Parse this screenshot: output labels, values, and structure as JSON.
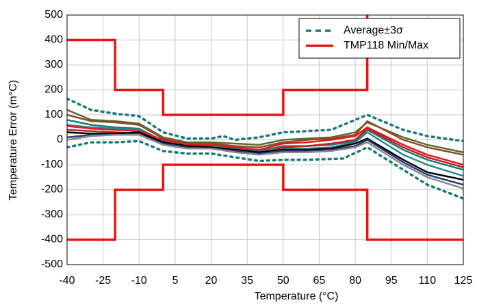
{
  "chart_data": {
    "type": "line",
    "xlabel": "Temperature (°C)",
    "ylabel": "Temperature Error (m°C)",
    "xlim": [
      -40,
      125
    ],
    "xticks": [
      -40,
      -25,
      -10,
      5,
      20,
      35,
      50,
      65,
      80,
      95,
      110,
      125
    ],
    "ylim": [
      -500,
      500
    ],
    "yticks": [
      -500,
      -400,
      -300,
      -200,
      -100,
      0,
      100,
      200,
      300,
      400,
      500
    ],
    "grid": true,
    "legend": "upper right",
    "series": [
      {
        "color": "#5a6b2a",
        "x": [
          -40,
          -30,
          -20,
          -10,
          0,
          10,
          20,
          30,
          40,
          50,
          60,
          70,
          80,
          85,
          100,
          110,
          125
        ],
        "values": [
          120,
          80,
          75,
          65,
          10,
          -10,
          -10,
          -15,
          -20,
          0,
          5,
          10,
          30,
          70,
          10,
          -20,
          -50
        ]
      },
      {
        "color": "#8b4a2b",
        "x": [
          -40,
          -30,
          -20,
          -10,
          0,
          10,
          20,
          30,
          40,
          50,
          60,
          70,
          80,
          85,
          100,
          110,
          125
        ],
        "values": [
          100,
          75,
          70,
          60,
          5,
          -15,
          -15,
          -25,
          -30,
          -10,
          0,
          5,
          20,
          75,
          0,
          -30,
          -60
        ]
      },
      {
        "color": "#1a7a7a",
        "x": [
          -40,
          -30,
          -20,
          -10,
          0,
          10,
          20,
          30,
          40,
          50,
          60,
          70,
          80,
          85,
          100,
          110,
          125
        ],
        "values": [
          80,
          60,
          50,
          45,
          -5,
          -20,
          -20,
          -35,
          -45,
          -25,
          -25,
          -20,
          -5,
          40,
          -40,
          -80,
          -120
        ]
      },
      {
        "color": "#2a8a8a",
        "x": [
          -40,
          -30,
          -20,
          -10,
          0,
          10,
          20,
          30,
          40,
          50,
          60,
          70,
          80,
          85,
          100,
          110,
          125
        ],
        "values": [
          60,
          50,
          45,
          40,
          -10,
          -25,
          -25,
          -40,
          -50,
          -35,
          -35,
          -30,
          -10,
          30,
          -60,
          -100,
          -145
        ]
      },
      {
        "color": "#e31a1c",
        "x": [
          -40,
          -30,
          -20,
          -10,
          0,
          10,
          20,
          30,
          40,
          50,
          60,
          70,
          80,
          85,
          100,
          110,
          125
        ],
        "values": [
          55,
          45,
          40,
          35,
          0,
          -20,
          -20,
          -30,
          -40,
          -15,
          -10,
          0,
          15,
          50,
          -20,
          -60,
          -100
        ]
      },
      {
        "color": "#c02020",
        "x": [
          -40,
          -30,
          -20,
          -10,
          0,
          10,
          20,
          30,
          40,
          50,
          60,
          70,
          80,
          85,
          100,
          110,
          125
        ],
        "values": [
          40,
          35,
          30,
          25,
          -10,
          -30,
          -30,
          -45,
          -55,
          -30,
          -25,
          -15,
          0,
          45,
          -30,
          -70,
          -110
        ]
      },
      {
        "color": "#000000",
        "x": [
          -40,
          -30,
          -20,
          -10,
          0,
          10,
          20,
          30,
          40,
          50,
          60,
          70,
          80,
          85,
          100,
          110,
          125
        ],
        "values": [
          30,
          25,
          25,
          30,
          -10,
          -25,
          -30,
          -40,
          -50,
          -40,
          -40,
          -35,
          -15,
          5,
          -80,
          -130,
          -160
        ]
      },
      {
        "color": "#1f3f7f",
        "x": [
          -40,
          -30,
          -20,
          -10,
          0,
          10,
          20,
          30,
          40,
          50,
          60,
          70,
          80,
          85,
          100,
          110,
          125
        ],
        "values": [
          10,
          20,
          20,
          20,
          -15,
          -30,
          -35,
          -45,
          -55,
          -45,
          -45,
          -40,
          -25,
          0,
          -90,
          -140,
          -180
        ]
      },
      {
        "color": "#8a8a8a",
        "x": [
          -40,
          -30,
          -20,
          -10,
          0,
          10,
          20,
          30,
          40,
          50,
          60,
          70,
          80,
          85,
          100,
          110,
          125
        ],
        "values": [
          0,
          15,
          20,
          20,
          -20,
          -35,
          -35,
          -50,
          -60,
          -50,
          -50,
          -45,
          -30,
          -10,
          -100,
          -150,
          -195
        ]
      },
      {
        "name": "Average±3σ",
        "color": "#1a7a7a",
        "style": "dotted",
        "x": [
          -40,
          -30,
          -20,
          -10,
          0,
          10,
          20,
          25,
          30,
          40,
          50,
          60,
          70,
          80,
          85,
          90,
          100,
          110,
          125
        ],
        "values": [
          165,
          120,
          105,
          95,
          30,
          5,
          5,
          15,
          0,
          10,
          30,
          35,
          40,
          80,
          100,
          80,
          40,
          15,
          -5
        ]
      },
      {
        "color": "#1a7a7a",
        "style": "dotted",
        "x": [
          -40,
          -30,
          -20,
          -10,
          0,
          10,
          20,
          30,
          40,
          50,
          60,
          75,
          85,
          100,
          110,
          125
        ],
        "values": [
          -30,
          -10,
          -10,
          -5,
          -45,
          -55,
          -55,
          -70,
          -85,
          -80,
          -80,
          -75,
          -30,
          -120,
          -180,
          -235
        ]
      },
      {
        "name": "TMP118 Min/Max",
        "color": "#ee1111",
        "style": "solid",
        "x": [
          -40,
          -20,
          -20,
          0,
          0,
          50,
          50,
          85,
          85
        ],
        "values": [
          400,
          400,
          200,
          200,
          100,
          100,
          200,
          200,
          500
        ]
      },
      {
        "color": "#ee1111",
        "style": "solid",
        "x": [
          -40,
          -20,
          -20,
          0,
          0,
          50,
          50,
          85,
          85,
          125
        ],
        "values": [
          -400,
          -400,
          -200,
          -200,
          -100,
          -100,
          -200,
          -200,
          -400,
          -400
        ]
      }
    ]
  }
}
